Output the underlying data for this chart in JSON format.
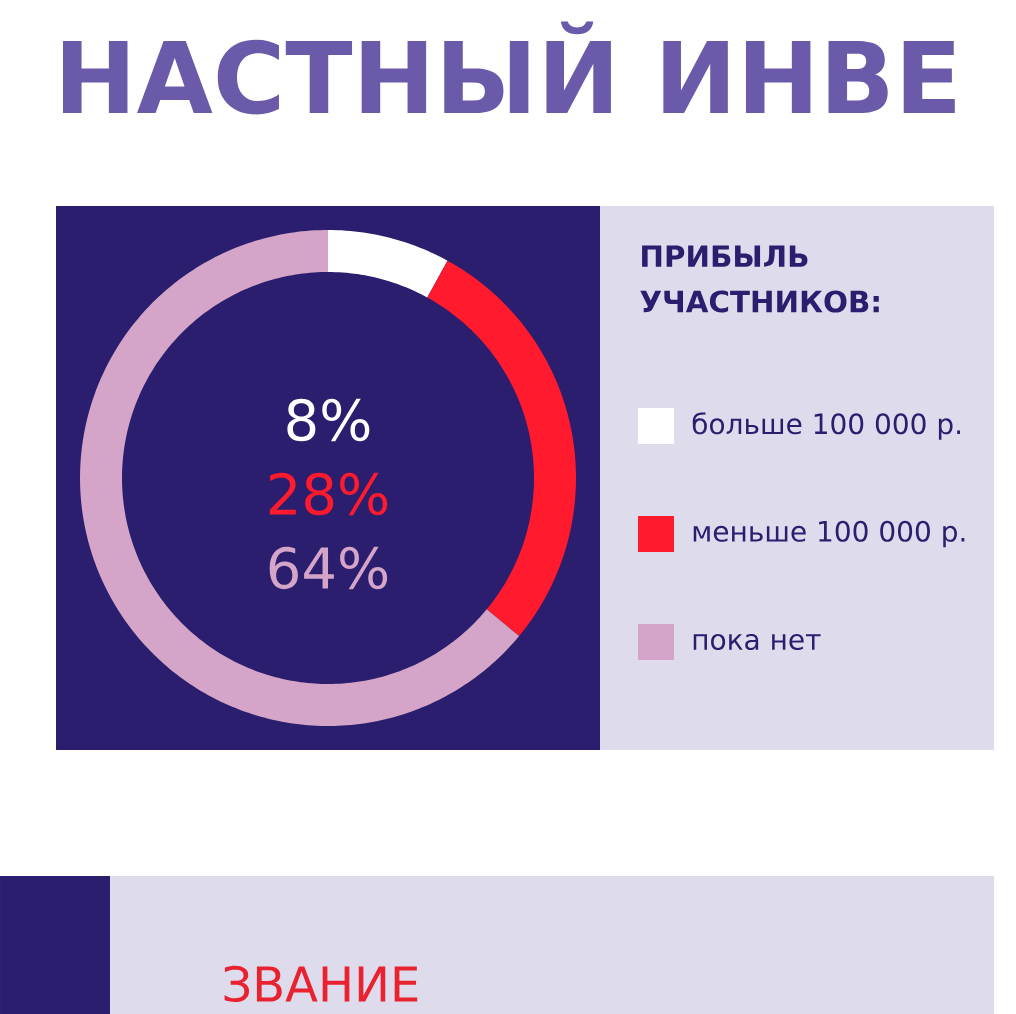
{
  "chart_data": {
    "type": "donut",
    "title": "НАСТНЫЙ ИНВЕ",
    "legend_title": "ПРИБЫЛЬ УЧАСТНИКОВ:",
    "categories": [
      "больше 100 000 р.",
      "меньше 100 000 р.",
      "пока нет"
    ],
    "values": [
      8,
      28,
      64
    ],
    "colors": [
      "#ffffff",
      "#ff1a2e",
      "#d4a5c8"
    ],
    "value_labels": [
      "8%",
      "28%",
      "64%"
    ],
    "legend": "right",
    "annotations": [
      "ЗВАНИЕ"
    ]
  }
}
